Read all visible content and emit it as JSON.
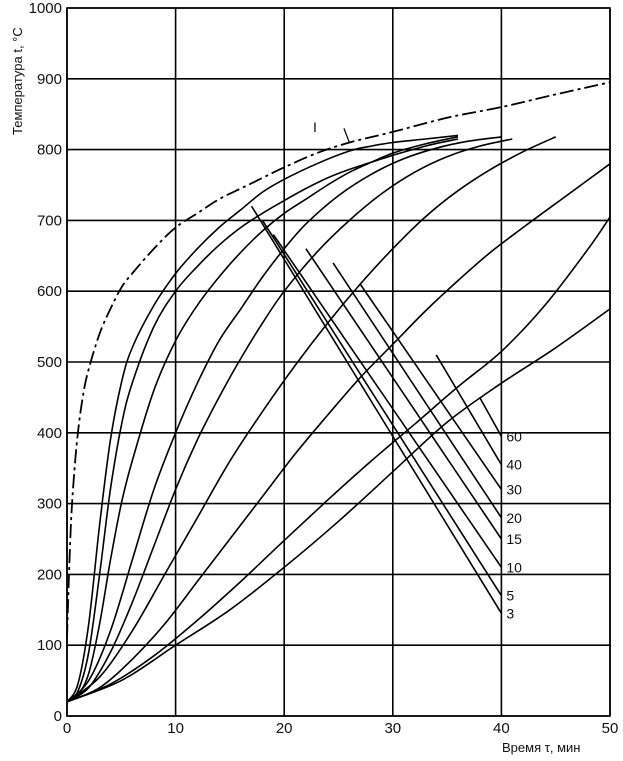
{
  "chart_data": {
    "type": "line",
    "xlabel": "Время τ, мин",
    "ylabel": "Температура t, °C",
    "xlim": [
      0,
      50
    ],
    "ylim": [
      0,
      1000
    ],
    "x_ticks": [
      "0",
      "10",
      "20",
      "30",
      "40",
      "50"
    ],
    "y_ticks": [
      "0",
      "100",
      "200",
      "300",
      "400",
      "500",
      "600",
      "700",
      "800",
      "900",
      "1000"
    ],
    "grid": true,
    "heating_curves": [
      {
        "x": [
          0,
          1,
          2,
          3,
          4,
          5,
          6,
          8,
          10,
          12,
          14,
          16,
          18,
          20,
          23,
          26,
          28,
          30,
          33,
          36
        ],
        "y": [
          20,
          45,
          130,
          270,
          390,
          470,
          520,
          580,
          625,
          660,
          690,
          715,
          740,
          758,
          780,
          798,
          805,
          810,
          815,
          820
        ]
      },
      {
        "x": [
          0,
          1,
          2,
          3,
          4,
          5,
          6,
          8,
          10,
          12,
          14,
          16,
          18,
          20,
          22,
          24,
          26,
          28,
          30,
          33,
          36
        ],
        "y": [
          20,
          35,
          90,
          200,
          320,
          410,
          470,
          550,
          600,
          635,
          665,
          690,
          710,
          728,
          745,
          760,
          772,
          782,
          792,
          805,
          815
        ]
      },
      {
        "x": [
          0,
          1,
          2,
          3,
          4,
          5,
          6,
          8,
          10,
          12,
          14,
          16,
          18,
          20,
          22,
          24,
          26,
          28,
          30,
          33,
          36
        ],
        "y": [
          20,
          30,
          60,
          130,
          220,
          300,
          360,
          460,
          530,
          580,
          620,
          655,
          685,
          710,
          730,
          750,
          768,
          782,
          795,
          808,
          818
        ]
      },
      {
        "x": [
          0,
          2,
          4,
          6,
          8,
          10,
          12,
          14,
          16,
          18,
          20,
          22,
          25,
          28,
          31,
          34,
          37,
          40
        ],
        "y": [
          20,
          50,
          120,
          220,
          320,
          400,
          470,
          530,
          575,
          620,
          660,
          695,
          735,
          765,
          787,
          802,
          812,
          818
        ]
      },
      {
        "x": [
          0,
          2,
          4,
          6,
          8,
          10,
          12,
          14,
          16,
          18,
          20,
          23,
          26,
          29,
          32,
          35,
          38,
          41
        ],
        "y": [
          20,
          40,
          90,
          160,
          240,
          320,
          390,
          450,
          505,
          555,
          600,
          655,
          700,
          738,
          768,
          790,
          805,
          815
        ]
      },
      {
        "x": [
          0,
          3,
          6,
          9,
          12,
          15,
          18,
          21,
          24,
          27,
          30,
          33,
          36,
          39,
          42,
          45
        ],
        "y": [
          20,
          55,
          120,
          200,
          280,
          360,
          430,
          495,
          555,
          610,
          660,
          705,
          742,
          772,
          797,
          818
        ]
      },
      {
        "x": [
          0,
          3,
          6,
          9,
          12,
          15,
          18,
          21,
          24,
          27,
          30,
          33,
          36,
          39,
          42,
          46,
          50
        ],
        "y": [
          20,
          40,
          80,
          130,
          190,
          250,
          310,
          370,
          425,
          478,
          525,
          572,
          615,
          655,
          690,
          735,
          780
        ]
      },
      {
        "x": [
          0,
          4,
          8,
          12,
          16,
          20,
          24,
          28,
          32,
          36,
          40,
          44,
          48,
          50
        ],
        "y": [
          20,
          45,
          85,
          135,
          190,
          248,
          305,
          360,
          412,
          465,
          515,
          580,
          660,
          705
        ]
      },
      {
        "x": [
          0,
          5,
          10,
          15,
          20,
          25,
          30,
          35,
          40,
          45,
          50
        ],
        "y": [
          20,
          50,
          100,
          150,
          210,
          275,
          345,
          415,
          470,
          520,
          575
        ]
      }
    ],
    "limit_curve": {
      "label": "I",
      "x": [
        0,
        0.3,
        0.6,
        1,
        1.5,
        2,
        3,
        4,
        5,
        6,
        8,
        10,
        12,
        14,
        16,
        18,
        20,
        23,
        26,
        30,
        35,
        40,
        45,
        50
      ],
      "y": [
        110,
        250,
        330,
        400,
        455,
        490,
        540,
        575,
        605,
        625,
        660,
        690,
        710,
        730,
        745,
        760,
        775,
        795,
        810,
        825,
        845,
        860,
        878,
        895
      ]
    },
    "time_lines": [
      {
        "label": "3",
        "x": [
          17,
          40
        ],
        "y": [
          720,
          145
        ]
      },
      {
        "label": "5",
        "x": [
          18,
          40
        ],
        "y": [
          700,
          170
        ]
      },
      {
        "label": "10",
        "x": [
          19,
          40
        ],
        "y": [
          680,
          210
        ]
      },
      {
        "label": "15",
        "x": [
          22,
          40
        ],
        "y": [
          660,
          250
        ]
      },
      {
        "label": "20",
        "x": [
          24.5,
          40
        ],
        "y": [
          640,
          280
        ]
      },
      {
        "label": "30",
        "x": [
          27,
          40
        ],
        "y": [
          610,
          320
        ]
      },
      {
        "label": "40",
        "x": [
          34,
          40
        ],
        "y": [
          510,
          355
        ]
      },
      {
        "label": "60",
        "x": [
          38,
          40
        ],
        "y": [
          450,
          395
        ]
      }
    ]
  },
  "colors": {
    "line": "#000000",
    "grid": "#000000",
    "background": "#ffffff"
  }
}
